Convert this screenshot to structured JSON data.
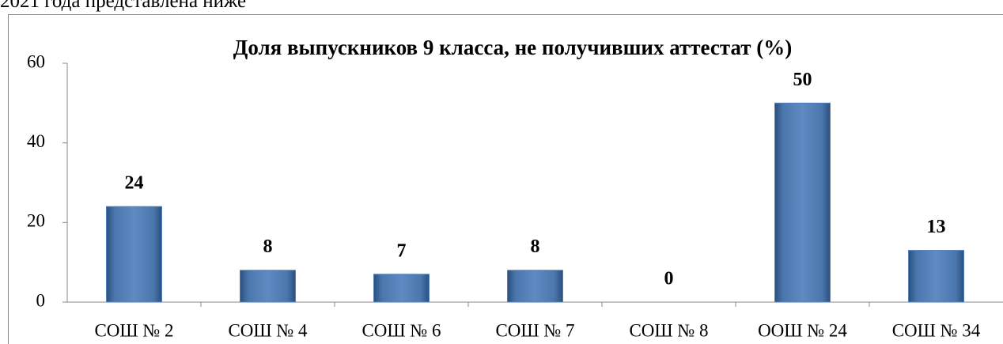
{
  "text": "2021 года представлена ниже",
  "chart_data": {
    "type": "bar",
    "title": "Доля выпускников 9 класса, не получивших аттестат (%)",
    "categories": [
      "СОШ № 2",
      "СОШ № 4",
      "СОШ № 6",
      "СОШ № 7",
      "СОШ № 8",
      "ООШ № 24",
      "СОШ № 34"
    ],
    "values": [
      24,
      8,
      7,
      8,
      0,
      50,
      13
    ],
    "color": "#4f81bd",
    "ylim": [
      0,
      60
    ],
    "yticks": [
      0,
      20,
      40,
      60
    ],
    "grid": false
  }
}
